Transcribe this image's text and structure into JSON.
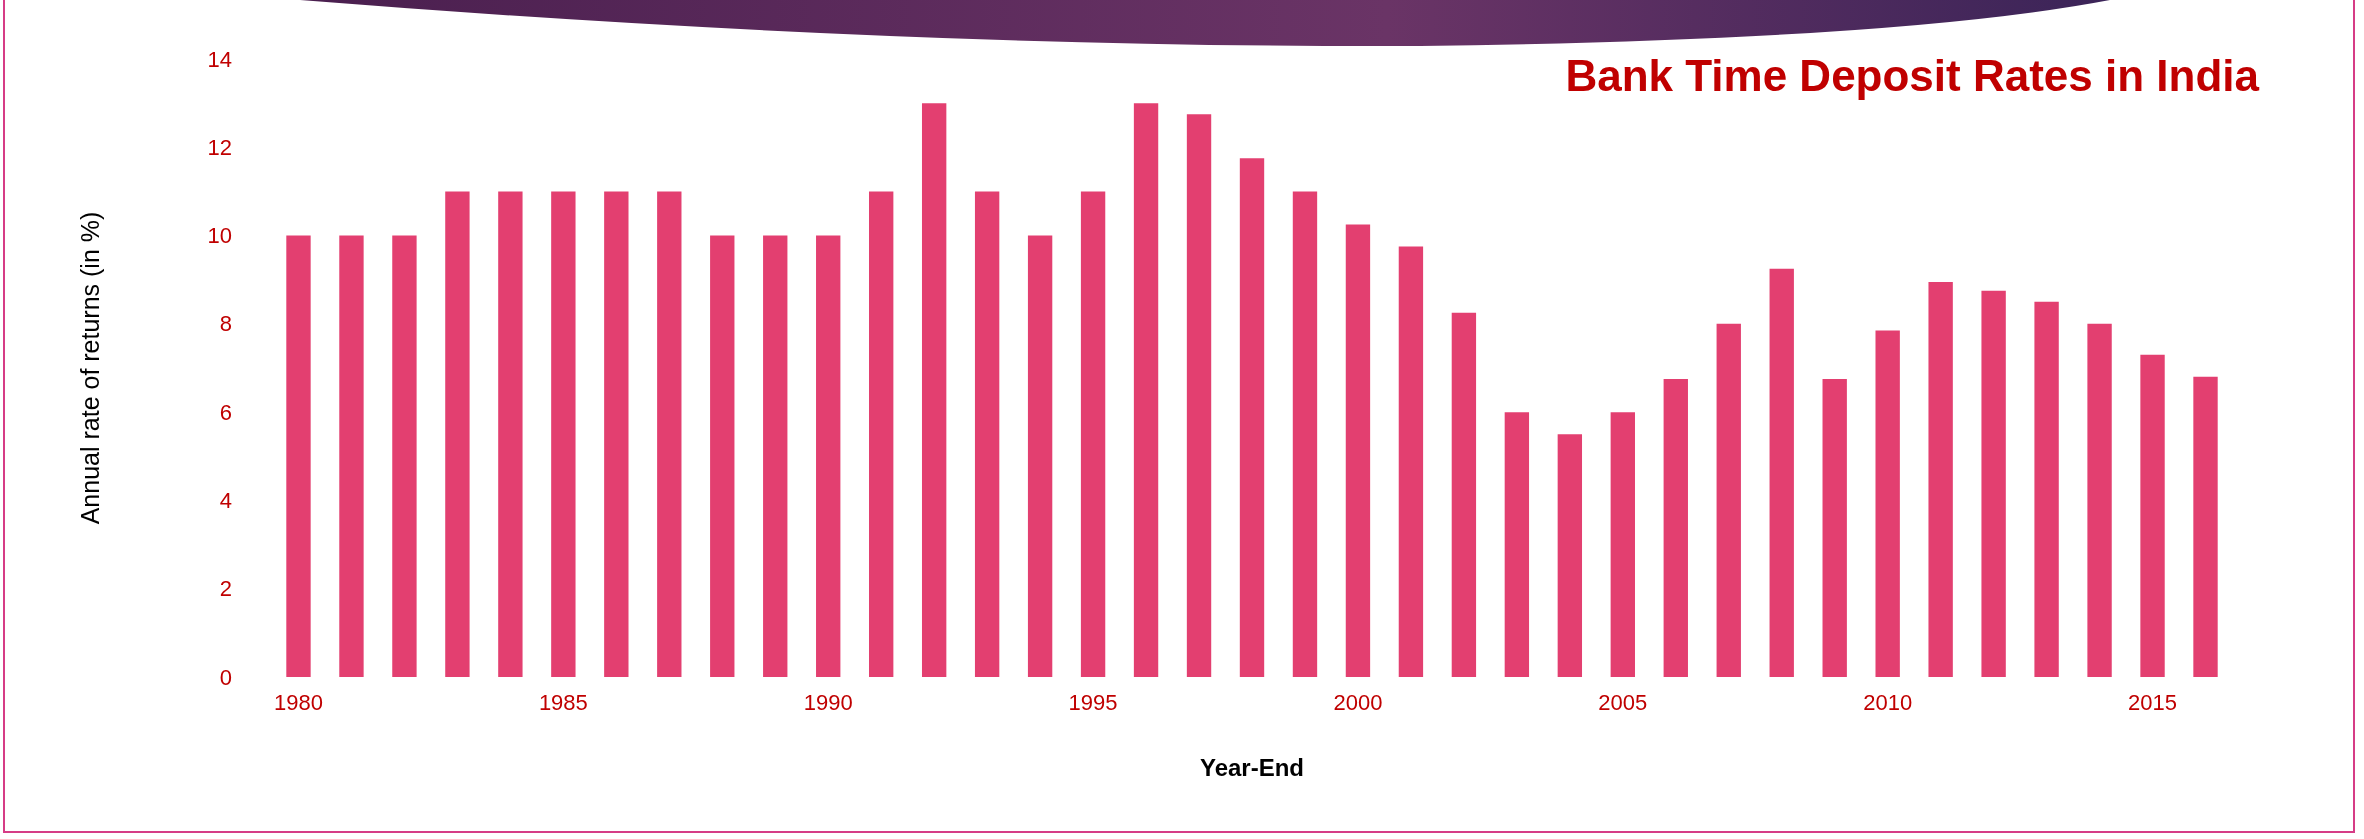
{
  "chart_data": {
    "type": "bar",
    "title": "Bank Time Deposit Rates in India",
    "xlabel": "Year-End",
    "ylabel": "Annual rate of returns (in %)",
    "categories": [
      "1980",
      null,
      null,
      null,
      null,
      "1985",
      null,
      null,
      null,
      null,
      "1990",
      null,
      null,
      null,
      null,
      "1995",
      null,
      null,
      null,
      null,
      "2000",
      null,
      null,
      null,
      null,
      "2005",
      null,
      null,
      null,
      null,
      "2010",
      null,
      null,
      null,
      null,
      "2015",
      null
    ],
    "series": [
      {
        "color": "#e33f70",
        "values": [
          10,
          10,
          10,
          11,
          11,
          11,
          11,
          11,
          10,
          10,
          10,
          11,
          13,
          11,
          10,
          11,
          13,
          12.75,
          11.75,
          11,
          10.25,
          9.75,
          8.25,
          6,
          5.5,
          6,
          6.75,
          8,
          9.25,
          6.75,
          7.85,
          8.95,
          8.75,
          8.5,
          8,
          7.3,
          6.8
        ]
      }
    ],
    "ylim": [
      0,
      14
    ],
    "yticks": [
      0,
      2,
      4,
      6,
      8,
      10,
      12,
      14
    ],
    "grid": false
  }
}
